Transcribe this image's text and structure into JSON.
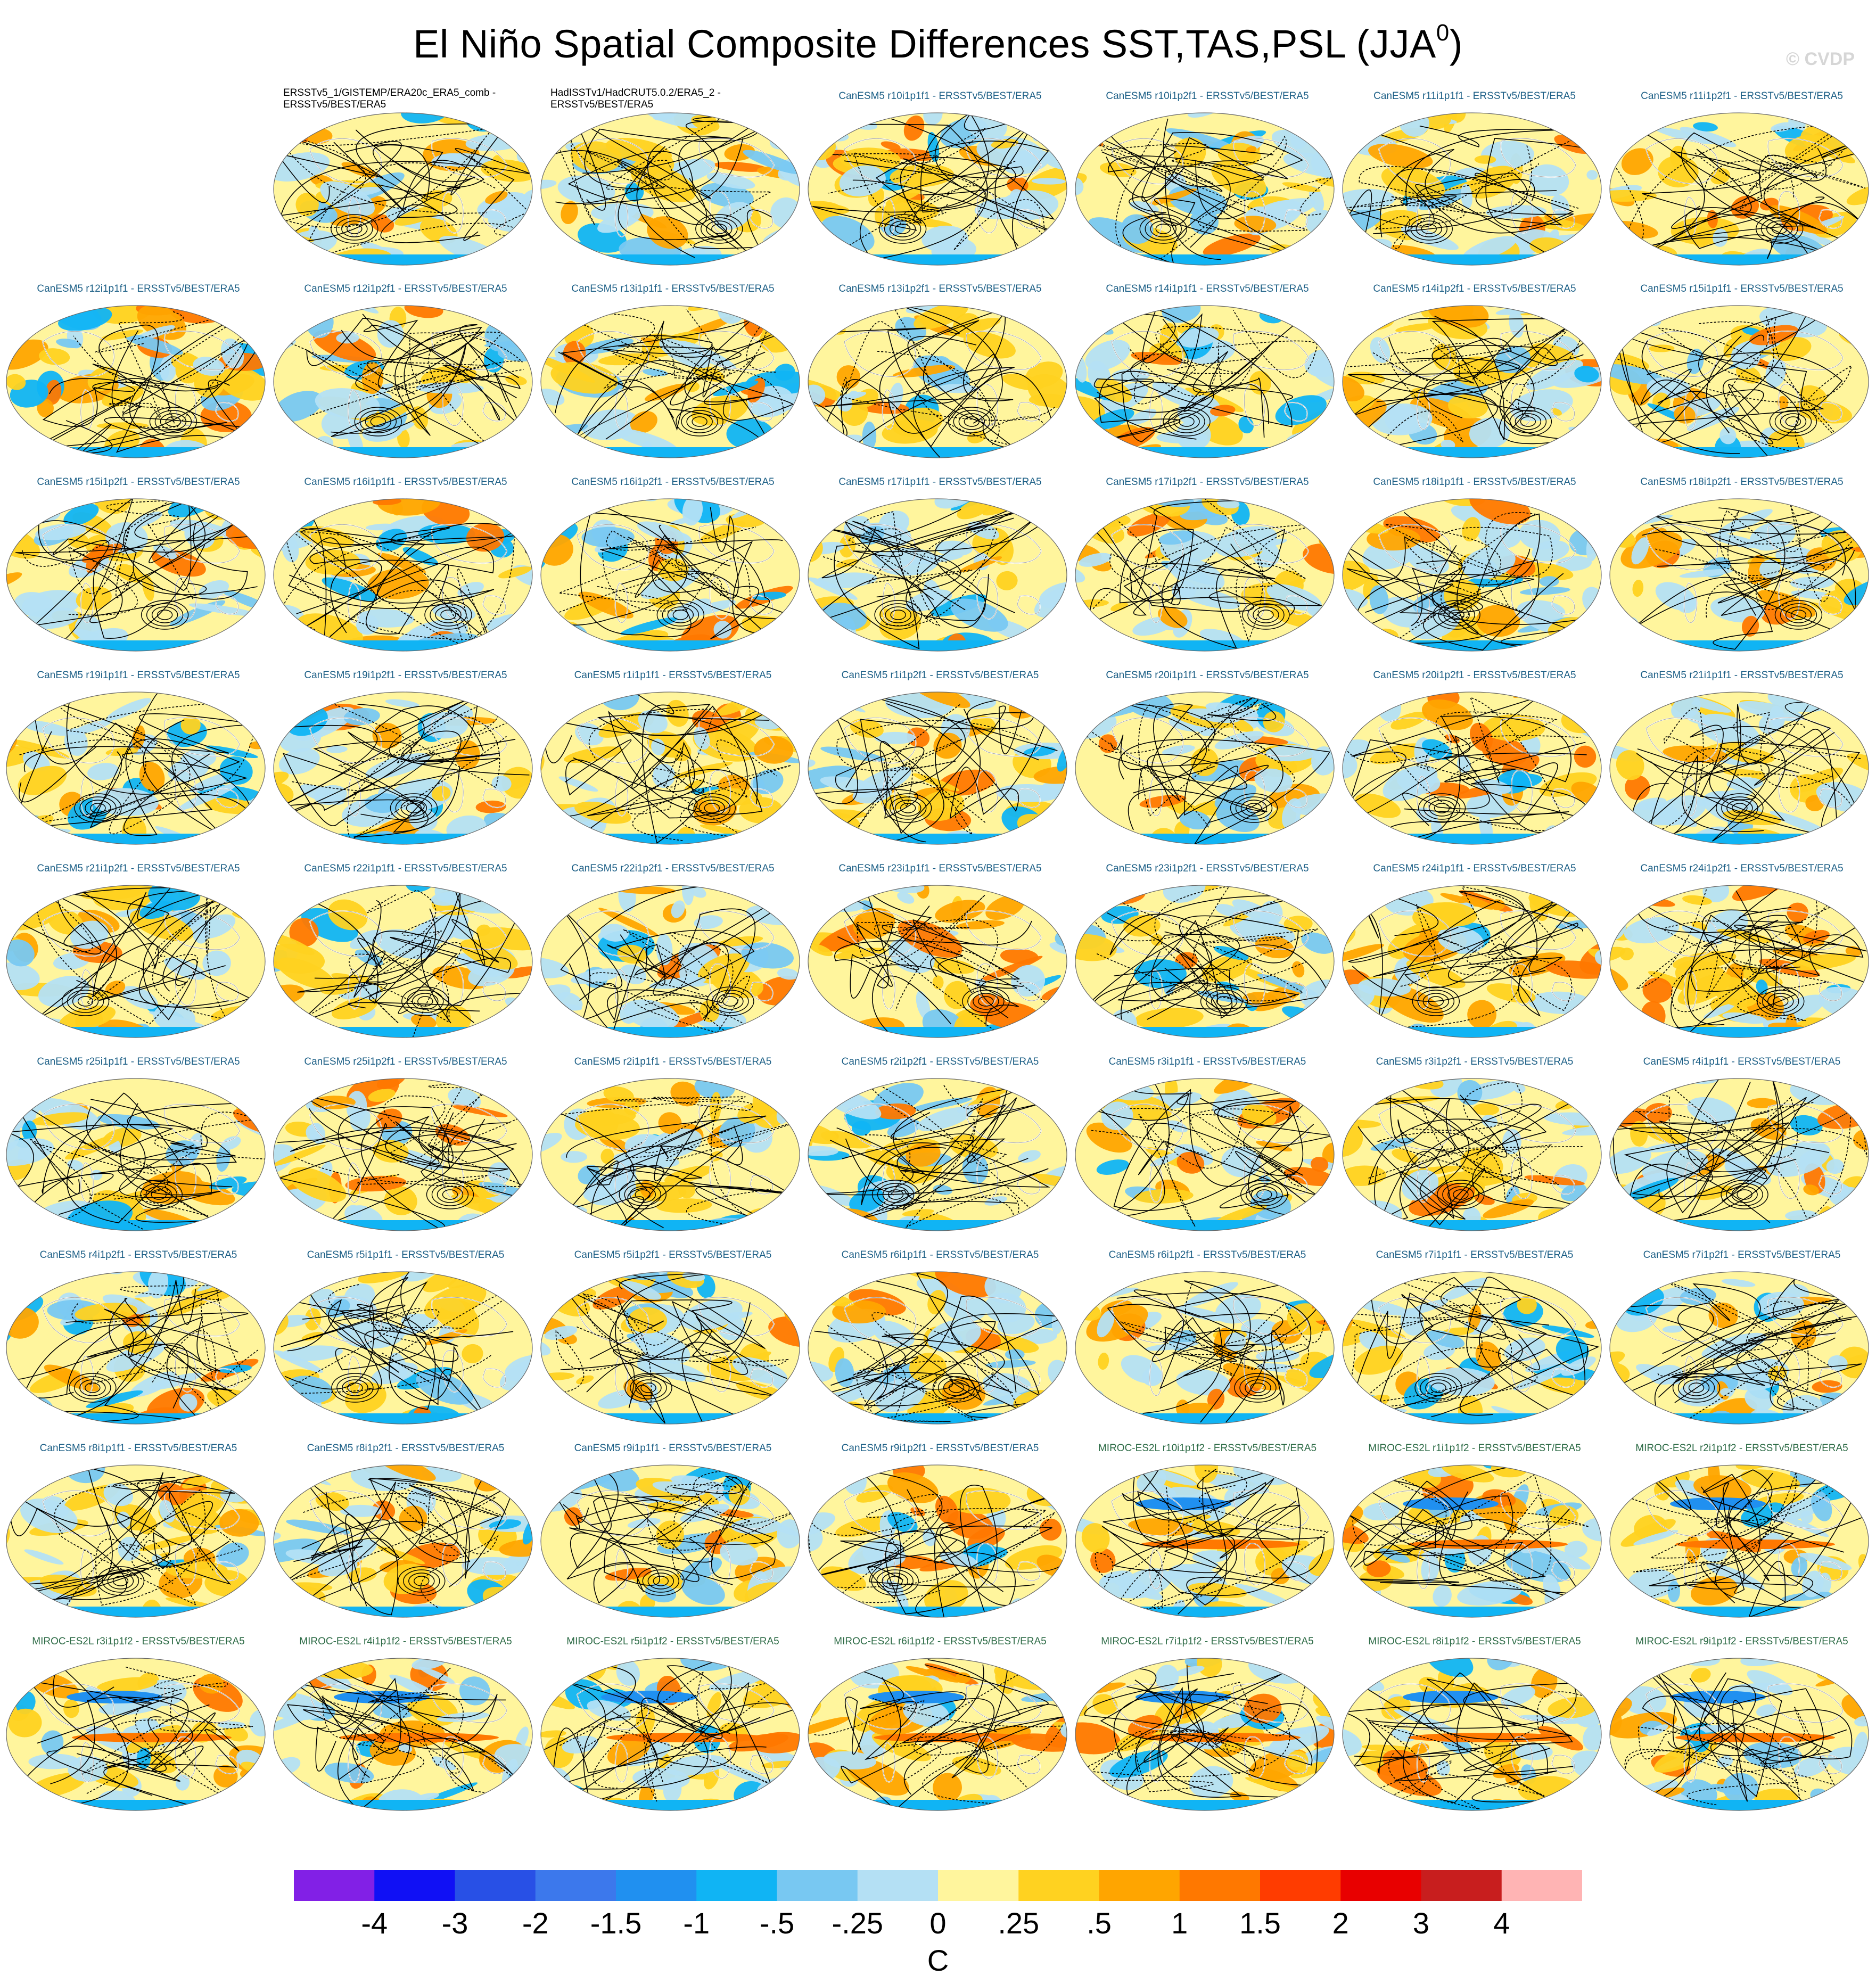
{
  "title": "El Niño Spatial Composite Differences SST,TAS,PSL (JJA",
  "title_sup": "0",
  "title_close": ")",
  "watermark": "© CVDP",
  "colors": {
    "model_canesm": "#1c5f86",
    "model_miroc": "#2d6b46",
    "observations": "#000000",
    "ocean_base": "#fff59d",
    "land_coast": "#ffffff",
    "contour": "#000000"
  },
  "chart_data": {
    "type": "heatmap",
    "projection": "global map panels (Robinson-like ellipse)",
    "panels": [
      {
        "label": "ERSSTv5_1/GISTEMP/ERA20c_ERA5_comb - ERSSTv5/BEST/ERA5",
        "group": "obs"
      },
      {
        "label": "HadISSTv1/HadCRUT5.0.2/ERA5_2 - ERSSTv5/BEST/ERA5",
        "group": "obs"
      },
      {
        "label": "CanESM5 r10i1p1f1 - ERSSTv5/BEST/ERA5",
        "group": "can"
      },
      {
        "label": "CanESM5 r10i1p2f1 - ERSSTv5/BEST/ERA5",
        "group": "can"
      },
      {
        "label": "CanESM5 r11i1p1f1 - ERSSTv5/BEST/ERA5",
        "group": "can"
      },
      {
        "label": "CanESM5 r11i1p2f1 - ERSSTv5/BEST/ERA5",
        "group": "can"
      },
      {
        "label": "CanESM5 r12i1p1f1 - ERSSTv5/BEST/ERA5",
        "group": "can"
      },
      {
        "label": "CanESM5 r12i1p2f1 - ERSSTv5/BEST/ERA5",
        "group": "can"
      },
      {
        "label": "CanESM5 r13i1p1f1 - ERSSTv5/BEST/ERA5",
        "group": "can"
      },
      {
        "label": "CanESM5 r13i1p2f1 - ERSSTv5/BEST/ERA5",
        "group": "can"
      },
      {
        "label": "CanESM5 r14i1p1f1 - ERSSTv5/BEST/ERA5",
        "group": "can"
      },
      {
        "label": "CanESM5 r14i1p2f1 - ERSSTv5/BEST/ERA5",
        "group": "can"
      },
      {
        "label": "CanESM5 r15i1p1f1 - ERSSTv5/BEST/ERA5",
        "group": "can"
      },
      {
        "label": "CanESM5 r15i1p2f1 - ERSSTv5/BEST/ERA5",
        "group": "can"
      },
      {
        "label": "CanESM5 r16i1p1f1 - ERSSTv5/BEST/ERA5",
        "group": "can"
      },
      {
        "label": "CanESM5 r16i1p2f1 - ERSSTv5/BEST/ERA5",
        "group": "can"
      },
      {
        "label": "CanESM5 r17i1p1f1 - ERSSTv5/BEST/ERA5",
        "group": "can"
      },
      {
        "label": "CanESM5 r17i1p2f1 - ERSSTv5/BEST/ERA5",
        "group": "can"
      },
      {
        "label": "CanESM5 r18i1p1f1 - ERSSTv5/BEST/ERA5",
        "group": "can"
      },
      {
        "label": "CanESM5 r18i1p2f1 - ERSSTv5/BEST/ERA5",
        "group": "can"
      },
      {
        "label": "CanESM5 r19i1p1f1 - ERSSTv5/BEST/ERA5",
        "group": "can"
      },
      {
        "label": "CanESM5 r19i1p2f1 - ERSSTv5/BEST/ERA5",
        "group": "can"
      },
      {
        "label": "CanESM5 r1i1p1f1 - ERSSTv5/BEST/ERA5",
        "group": "can"
      },
      {
        "label": "CanESM5 r1i1p2f1 - ERSSTv5/BEST/ERA5",
        "group": "can"
      },
      {
        "label": "CanESM5 r20i1p1f1 - ERSSTv5/BEST/ERA5",
        "group": "can"
      },
      {
        "label": "CanESM5 r20i1p2f1 - ERSSTv5/BEST/ERA5",
        "group": "can"
      },
      {
        "label": "CanESM5 r21i1p1f1 - ERSSTv5/BEST/ERA5",
        "group": "can"
      },
      {
        "label": "CanESM5 r21i1p2f1 - ERSSTv5/BEST/ERA5",
        "group": "can"
      },
      {
        "label": "CanESM5 r22i1p1f1 - ERSSTv5/BEST/ERA5",
        "group": "can"
      },
      {
        "label": "CanESM5 r22i1p2f1 - ERSSTv5/BEST/ERA5",
        "group": "can"
      },
      {
        "label": "CanESM5 r23i1p1f1 - ERSSTv5/BEST/ERA5",
        "group": "can"
      },
      {
        "label": "CanESM5 r23i1p2f1 - ERSSTv5/BEST/ERA5",
        "group": "can"
      },
      {
        "label": "CanESM5 r24i1p1f1 - ERSSTv5/BEST/ERA5",
        "group": "can"
      },
      {
        "label": "CanESM5 r24i1p2f1 - ERSSTv5/BEST/ERA5",
        "group": "can"
      },
      {
        "label": "CanESM5 r25i1p1f1 - ERSSTv5/BEST/ERA5",
        "group": "can"
      },
      {
        "label": "CanESM5 r25i1p2f1 - ERSSTv5/BEST/ERA5",
        "group": "can"
      },
      {
        "label": "CanESM5 r2i1p1f1 - ERSSTv5/BEST/ERA5",
        "group": "can"
      },
      {
        "label": "CanESM5 r2i1p2f1 - ERSSTv5/BEST/ERA5",
        "group": "can"
      },
      {
        "label": "CanESM5 r3i1p1f1 - ERSSTv5/BEST/ERA5",
        "group": "can"
      },
      {
        "label": "CanESM5 r3i1p2f1 - ERSSTv5/BEST/ERA5",
        "group": "can"
      },
      {
        "label": "CanESM5 r4i1p1f1 - ERSSTv5/BEST/ERA5",
        "group": "can"
      },
      {
        "label": "CanESM5 r4i1p2f1 - ERSSTv5/BEST/ERA5",
        "group": "can"
      },
      {
        "label": "CanESM5 r5i1p1f1 - ERSSTv5/BEST/ERA5",
        "group": "can"
      },
      {
        "label": "CanESM5 r5i1p2f1 - ERSSTv5/BEST/ERA5",
        "group": "can"
      },
      {
        "label": "CanESM5 r6i1p1f1 - ERSSTv5/BEST/ERA5",
        "group": "can"
      },
      {
        "label": "CanESM5 r6i1p2f1 - ERSSTv5/BEST/ERA5",
        "group": "can"
      },
      {
        "label": "CanESM5 r7i1p1f1 - ERSSTv5/BEST/ERA5",
        "group": "can"
      },
      {
        "label": "CanESM5 r7i1p2f1 - ERSSTv5/BEST/ERA5",
        "group": "can"
      },
      {
        "label": "CanESM5 r8i1p1f1 - ERSSTv5/BEST/ERA5",
        "group": "can"
      },
      {
        "label": "CanESM5 r8i1p2f1 - ERSSTv5/BEST/ERA5",
        "group": "can"
      },
      {
        "label": "CanESM5 r9i1p1f1 - ERSSTv5/BEST/ERA5",
        "group": "can"
      },
      {
        "label": "CanESM5 r9i1p2f1 - ERSSTv5/BEST/ERA5",
        "group": "can"
      },
      {
        "label": "MIROC-ES2L r10i1p1f2 - ERSSTv5/BEST/ERA5",
        "group": "mir"
      },
      {
        "label": "MIROC-ES2L r1i1p1f2 - ERSSTv5/BEST/ERA5",
        "group": "mir"
      },
      {
        "label": "MIROC-ES2L r2i1p1f2 - ERSSTv5/BEST/ERA5",
        "group": "mir"
      },
      {
        "label": "MIROC-ES2L r3i1p1f2 - ERSSTv5/BEST/ERA5",
        "group": "mir"
      },
      {
        "label": "MIROC-ES2L r4i1p1f2 - ERSSTv5/BEST/ERA5",
        "group": "mir"
      },
      {
        "label": "MIROC-ES2L r5i1p1f2 - ERSSTv5/BEST/ERA5",
        "group": "mir"
      },
      {
        "label": "MIROC-ES2L r6i1p1f2 - ERSSTv5/BEST/ERA5",
        "group": "mir"
      },
      {
        "label": "MIROC-ES2L r7i1p1f2 - ERSSTv5/BEST/ERA5",
        "group": "mir"
      },
      {
        "label": "MIROC-ES2L r8i1p1f2 - ERSSTv5/BEST/ERA5",
        "group": "mir"
      },
      {
        "label": "MIROC-ES2L r9i1p1f2 - ERSSTv5/BEST/ERA5",
        "group": "mir"
      }
    ],
    "colorbar": {
      "units": "C",
      "tick_labels": [
        "-4",
        "-3",
        "-2",
        "-1.5",
        "-1",
        "-.5",
        "-.25",
        "0",
        ".25",
        ".5",
        "1",
        "1.5",
        "2",
        "3",
        "4"
      ],
      "colors": [
        "#8220e6",
        "#1010f5",
        "#2850e6",
        "#3c78ec",
        "#2090f0",
        "#10b4f4",
        "#78c8f2",
        "#b4e0f4",
        "#fff59d",
        "#ffd220",
        "#ffa500",
        "#ff7800",
        "#ff3c00",
        "#e80000",
        "#c81e1e",
        "#ffb4b4"
      ]
    }
  }
}
